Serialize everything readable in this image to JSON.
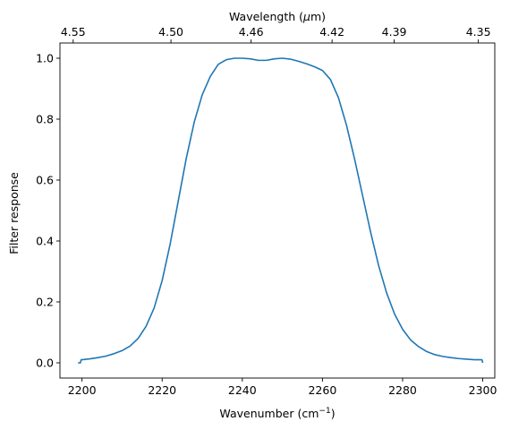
{
  "chart_data": {
    "type": "line",
    "xlabel": "Wavenumber (cm",
    "xlabel_sup": "−1",
    "xlabel_suffix": ")",
    "ylabel": "Filter response",
    "secondary_xlabel": "Wavelength (",
    "secondary_xlabel_mu": "μ",
    "secondary_xlabel_suffix": "m)",
    "xlim": [
      2194.5,
      2303
    ],
    "ylim": [
      -0.05,
      1.05
    ],
    "xticks": [
      2200,
      2220,
      2240,
      2260,
      2280,
      2300
    ],
    "xtick_labels": [
      "2200",
      "2220",
      "2240",
      "2260",
      "2280",
      "2300"
    ],
    "yticks": [
      0.0,
      0.2,
      0.4,
      0.6,
      0.8,
      1.0
    ],
    "ytick_labels": [
      "0.0",
      "0.2",
      "0.4",
      "0.6",
      "0.8",
      "1.0"
    ],
    "top_ticks": [
      {
        "wavenumber": 2197.8,
        "label": "4.55"
      },
      {
        "wavenumber": 2222.2,
        "label": "4.50"
      },
      {
        "wavenumber": 2242.2,
        "label": "4.46"
      },
      {
        "wavenumber": 2262.4,
        "label": "4.42"
      },
      {
        "wavenumber": 2277.9,
        "label": "4.39"
      },
      {
        "wavenumber": 2298.9,
        "label": "4.35"
      }
    ],
    "grid": false,
    "series": [
      {
        "color": "#1f77b4",
        "points": [
          [
            2199,
            0.0
          ],
          [
            2199.6,
            0.0
          ],
          [
            2199.8,
            0.01
          ],
          [
            2200,
            0.01
          ],
          [
            2202,
            0.013
          ],
          [
            2204,
            0.017
          ],
          [
            2206,
            0.022
          ],
          [
            2208,
            0.03
          ],
          [
            2210,
            0.04
          ],
          [
            2212,
            0.055
          ],
          [
            2214,
            0.08
          ],
          [
            2216,
            0.12
          ],
          [
            2218,
            0.18
          ],
          [
            2220,
            0.27
          ],
          [
            2222,
            0.39
          ],
          [
            2224,
            0.53
          ],
          [
            2226,
            0.67
          ],
          [
            2228,
            0.79
          ],
          [
            2230,
            0.88
          ],
          [
            2232,
            0.94
          ],
          [
            2234,
            0.98
          ],
          [
            2236,
            0.995
          ],
          [
            2238,
            1.0
          ],
          [
            2240,
            1.0
          ],
          [
            2242,
            0.998
          ],
          [
            2244,
            0.993
          ],
          [
            2246,
            0.993
          ],
          [
            2248,
            0.998
          ],
          [
            2250,
            1.0
          ],
          [
            2252,
            0.997
          ],
          [
            2254,
            0.99
          ],
          [
            2256,
            0.982
          ],
          [
            2258,
            0.972
          ],
          [
            2260,
            0.96
          ],
          [
            2262,
            0.93
          ],
          [
            2264,
            0.87
          ],
          [
            2266,
            0.78
          ],
          [
            2268,
            0.67
          ],
          [
            2270,
            0.55
          ],
          [
            2272,
            0.43
          ],
          [
            2274,
            0.32
          ],
          [
            2276,
            0.23
          ],
          [
            2278,
            0.16
          ],
          [
            2280,
            0.11
          ],
          [
            2282,
            0.075
          ],
          [
            2284,
            0.053
          ],
          [
            2286,
            0.037
          ],
          [
            2288,
            0.027
          ],
          [
            2290,
            0.021
          ],
          [
            2292,
            0.017
          ],
          [
            2294,
            0.014
          ],
          [
            2296,
            0.012
          ],
          [
            2298,
            0.01
          ],
          [
            2299.8,
            0.01
          ],
          [
            2300,
            0.0
          ]
        ]
      }
    ]
  }
}
